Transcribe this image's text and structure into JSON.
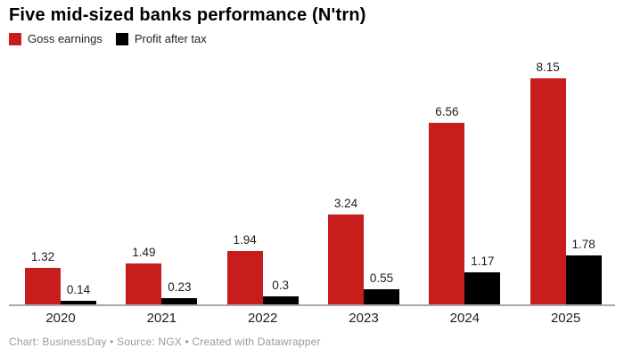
{
  "title": "Five mid-sized banks performance (N'trn)",
  "footer": "Chart: BusinessDay • Source: NGX • Created with Datawrapper",
  "legend": [
    {
      "label": "Goss earnings",
      "color": "#c71e1d"
    },
    {
      "label": "Profit after tax",
      "color": "#000000"
    }
  ],
  "chart_data": {
    "type": "bar",
    "title": "Five mid-sized banks performance (N'trn)",
    "categories": [
      "2020",
      "2021",
      "2022",
      "2023",
      "2024",
      "2025"
    ],
    "series": [
      {
        "name": "Goss earnings",
        "color": "#c71e1d",
        "values": [
          1.32,
          1.49,
          1.94,
          3.24,
          6.56,
          8.15
        ]
      },
      {
        "name": "Profit after tax",
        "color": "#000000",
        "values": [
          0.14,
          0.23,
          0.3,
          0.55,
          1.17,
          1.78
        ]
      }
    ],
    "xlabel": "",
    "ylabel": "",
    "ylim": [
      0,
      8.15
    ],
    "grid": false,
    "value_labels_shown": true,
    "legend_position": "top-left",
    "attribution": "Chart: BusinessDay • Source: NGX • Created with Datawrapper"
  }
}
